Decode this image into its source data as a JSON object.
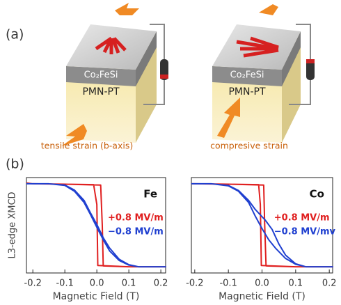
{
  "panel_a": {
    "label": "(a)",
    "left_layer": "Co₂FeSi",
    "left_substrate": "PMN-PT",
    "left_caption": "tensile strain (b-axis)",
    "right_layer": "Co₂FeSi",
    "right_substrate": "PMN-PT",
    "right_caption": "compresive strain"
  },
  "panel_b": {
    "label": "(b)"
  },
  "chart_data": [
    {
      "type": "line",
      "label": "Fe",
      "ylabel": "L3-edge XMCD",
      "xlabel": "Magnetic Field (T)",
      "xlim": [
        -0.22,
        0.215
      ],
      "ylim": [
        -1.15,
        1.15
      ],
      "xticks": [
        -0.2,
        -0.1,
        {
          "value": 0,
          "label": "0.0"
        },
        0.1,
        0.2
      ],
      "series": [
        {
          "name": "+0.8 MV/m",
          "color": "#e02020",
          "x": [
            -0.22,
            -0.2,
            -0.1,
            -0.01,
            0,
            0.003,
            0.1,
            0.2,
            0.215,
            0.2,
            0.1,
            0.02,
            0.017,
            0.012,
            -0.1,
            -0.2,
            -0.22
          ],
          "values": [
            1.02,
            1.0,
            0.99,
            0.98,
            0.5,
            -0.97,
            -1,
            -1,
            -1,
            -1,
            -1,
            -0.98,
            0,
            0.97,
            0.99,
            1.0,
            1.02
          ]
        },
        {
          "name": "−0.8 MV/m",
          "color": "#2040d0",
          "x": [
            -0.22,
            -0.15,
            -0.1,
            -0.07,
            -0.04,
            -0.02,
            0,
            0.02,
            0.04,
            0.07,
            0.1,
            0.13,
            0.215,
            0.13,
            0.1,
            0.07,
            0.04,
            0.02,
            0,
            -0.02,
            -0.04,
            -0.07,
            -0.1,
            -0.15,
            -0.22
          ],
          "values": [
            1,
            1,
            0.97,
            0.85,
            0.6,
            0.3,
            0.02,
            -0.3,
            -0.55,
            -0.82,
            -0.95,
            -1,
            -1,
            -1,
            -0.96,
            -0.85,
            -0.62,
            -0.35,
            -0.05,
            0.26,
            0.55,
            0.82,
            0.96,
            1,
            1
          ]
        }
      ]
    },
    {
      "type": "line",
      "label": "Co",
      "xlabel": "Magnetic Field (T)",
      "xlim": [
        -0.21,
        0.21
      ],
      "ylim": [
        -1.15,
        1.15
      ],
      "xticks": [
        -0.2,
        -0.1,
        {
          "value": 0,
          "label": "0.0"
        },
        0.1,
        0.2
      ],
      "series": [
        {
          "name": "+0.8 MV/m",
          "color": "#e02020",
          "x": [
            -0.21,
            -0.2,
            -0.1,
            -0.01,
            -0.005,
            -0.002,
            0.1,
            0.2,
            0.21,
            0.2,
            0.1,
            0.012,
            0.008,
            0.005,
            -0.1,
            -0.2,
            -0.21
          ],
          "values": [
            1.0,
            1.0,
            0.99,
            0.98,
            0.5,
            -0.97,
            -1,
            -1,
            -1,
            -1,
            -1,
            -0.98,
            0,
            0.97,
            0.99,
            1.0,
            1.0
          ]
        },
        {
          "name": "−0.8 MV/mv",
          "color": "#2040d0",
          "x": [
            -0.21,
            -0.15,
            -0.1,
            -0.07,
            -0.04,
            -0.02,
            0,
            0.02,
            0.04,
            0.07,
            0.1,
            0.13,
            0.21,
            0.13,
            0.1,
            0.07,
            0.05,
            0.03,
            0.01,
            -0.02,
            -0.04,
            -0.07,
            -0.1,
            -0.15,
            -0.21
          ],
          "values": [
            1,
            1,
            0.95,
            0.82,
            0.55,
            0.22,
            -0.08,
            -0.35,
            -0.55,
            -0.8,
            -0.94,
            -1,
            -1,
            -1,
            -0.93,
            -0.72,
            -0.45,
            -0.1,
            0.12,
            0.38,
            0.6,
            0.84,
            0.96,
            1,
            1
          ]
        }
      ]
    }
  ]
}
